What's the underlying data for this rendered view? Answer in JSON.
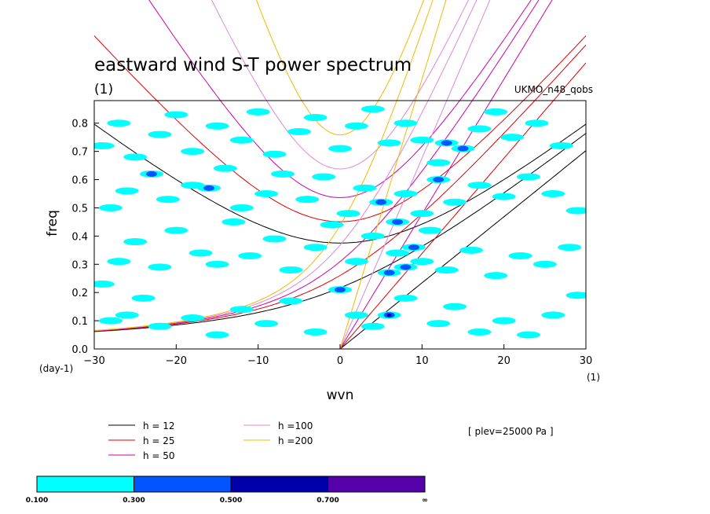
{
  "chart_data": {
    "type": "contour",
    "title": "eastward wind S-T power spectrum",
    "title_unit": "(1)",
    "dataset": "UKMO_n48_qobs",
    "xlabel": "wvn",
    "xunit": "(1)",
    "ylabel": "freq",
    "yunit": "(day-1)",
    "xlim": [
      -30,
      30
    ],
    "ylim": [
      0,
      0.88
    ],
    "xticks": [
      "−30",
      "−20",
      "−10",
      "0",
      "10",
      "20",
      "30"
    ],
    "yticks": [
      "0.0",
      "0.1",
      "0.2",
      "0.3",
      "0.4",
      "0.5",
      "0.6",
      "0.7",
      "0.8"
    ],
    "annotation": "[ plev=25000 Pa ]",
    "dispersion_curves": [
      {
        "name": "h = 12",
        "h": 12,
        "color": "#000000"
      },
      {
        "name": "h = 25",
        "h": 25,
        "color": "#dd0000"
      },
      {
        "name": "h = 50",
        "h": 50,
        "color": "#cc00aa"
      },
      {
        "name": "h =100",
        "h": 100,
        "color": "#dd88dd"
      },
      {
        "name": "h =200",
        "h": 200,
        "color": "#eebb00"
      }
    ],
    "colorbar": {
      "levels": [
        "0.100",
        "0.300",
        "0.500",
        "0.700",
        "∞"
      ],
      "colors": [
        "#00ffff",
        "#0055ff",
        "#0000aa",
        "#5500aa"
      ]
    },
    "shaded_blobs": [
      [
        -28,
        0.1,
        0
      ],
      [
        -26,
        0.12,
        0
      ],
      [
        -29,
        0.23,
        0
      ],
      [
        -24,
        0.18,
        0
      ],
      [
        -22,
        0.08,
        0
      ],
      [
        -18,
        0.11,
        0
      ],
      [
        -15,
        0.05,
        0
      ],
      [
        -12,
        0.14,
        0
      ],
      [
        -9,
        0.09,
        0
      ],
      [
        -6,
        0.17,
        0
      ],
      [
        -3,
        0.06,
        0
      ],
      [
        0,
        0.21,
        1
      ],
      [
        2,
        0.12,
        0
      ],
      [
        4,
        0.08,
        0
      ],
      [
        6,
        0.12,
        2
      ],
      [
        8,
        0.18,
        0
      ],
      [
        12,
        0.09,
        0
      ],
      [
        14,
        0.15,
        0
      ],
      [
        17,
        0.06,
        0
      ],
      [
        20,
        0.1,
        0
      ],
      [
        23,
        0.05,
        0
      ],
      [
        26,
        0.12,
        0
      ],
      [
        29,
        0.19,
        0
      ],
      [
        -27,
        0.31,
        0
      ],
      [
        -25,
        0.38,
        0
      ],
      [
        -22,
        0.29,
        0
      ],
      [
        -20,
        0.42,
        0
      ],
      [
        -17,
        0.34,
        0
      ],
      [
        -15,
        0.3,
        0
      ],
      [
        -13,
        0.45,
        0
      ],
      [
        -11,
        0.33,
        0
      ],
      [
        -8,
        0.39,
        0
      ],
      [
        -6,
        0.28,
        0
      ],
      [
        -3,
        0.36,
        0
      ],
      [
        -1,
        0.44,
        0
      ],
      [
        2,
        0.31,
        0
      ],
      [
        4,
        0.4,
        0
      ],
      [
        6,
        0.27,
        1
      ],
      [
        7,
        0.34,
        0
      ],
      [
        8,
        0.29,
        1
      ],
      [
        9,
        0.36,
        1
      ],
      [
        10,
        0.31,
        0
      ],
      [
        11,
        0.42,
        0
      ],
      [
        13,
        0.28,
        0
      ],
      [
        16,
        0.35,
        0
      ],
      [
        19,
        0.26,
        0
      ],
      [
        22,
        0.33,
        0
      ],
      [
        25,
        0.3,
        0
      ],
      [
        28,
        0.36,
        0
      ],
      [
        -28,
        0.5,
        0
      ],
      [
        -26,
        0.56,
        0
      ],
      [
        -23,
        0.62,
        1
      ],
      [
        -21,
        0.53,
        0
      ],
      [
        -18,
        0.58,
        0
      ],
      [
        -16,
        0.57,
        1
      ],
      [
        -14,
        0.64,
        0
      ],
      [
        -12,
        0.5,
        0
      ],
      [
        -9,
        0.55,
        0
      ],
      [
        -7,
        0.62,
        0
      ],
      [
        -4,
        0.53,
        0
      ],
      [
        -2,
        0.61,
        0
      ],
      [
        1,
        0.48,
        0
      ],
      [
        3,
        0.57,
        0
      ],
      [
        5,
        0.52,
        1
      ],
      [
        7,
        0.45,
        1
      ],
      [
        8,
        0.55,
        0
      ],
      [
        10,
        0.48,
        0
      ],
      [
        12,
        0.6,
        1
      ],
      [
        14,
        0.52,
        0
      ],
      [
        17,
        0.58,
        0
      ],
      [
        20,
        0.54,
        0
      ],
      [
        23,
        0.61,
        0
      ],
      [
        26,
        0.55,
        0
      ],
      [
        29,
        0.49,
        0
      ],
      [
        -29,
        0.72,
        0
      ],
      [
        -27,
        0.8,
        0
      ],
      [
        -25,
        0.68,
        0
      ],
      [
        -22,
        0.76,
        0
      ],
      [
        -20,
        0.83,
        0
      ],
      [
        -18,
        0.7,
        0
      ],
      [
        -15,
        0.79,
        0
      ],
      [
        -12,
        0.74,
        0
      ],
      [
        -10,
        0.84,
        0
      ],
      [
        -8,
        0.69,
        0
      ],
      [
        -5,
        0.77,
        0
      ],
      [
        -3,
        0.82,
        0
      ],
      [
        0,
        0.71,
        0
      ],
      [
        2,
        0.79,
        0
      ],
      [
        4,
        0.85,
        0
      ],
      [
        6,
        0.73,
        0
      ],
      [
        8,
        0.8,
        0
      ],
      [
        10,
        0.74,
        0
      ],
      [
        12,
        0.66,
        0
      ],
      [
        13,
        0.73,
        1
      ],
      [
        15,
        0.71,
        1
      ],
      [
        17,
        0.78,
        0
      ],
      [
        19,
        0.84,
        0
      ],
      [
        21,
        0.75,
        0
      ],
      [
        24,
        0.8,
        0
      ],
      [
        27,
        0.72,
        0
      ]
    ]
  }
}
